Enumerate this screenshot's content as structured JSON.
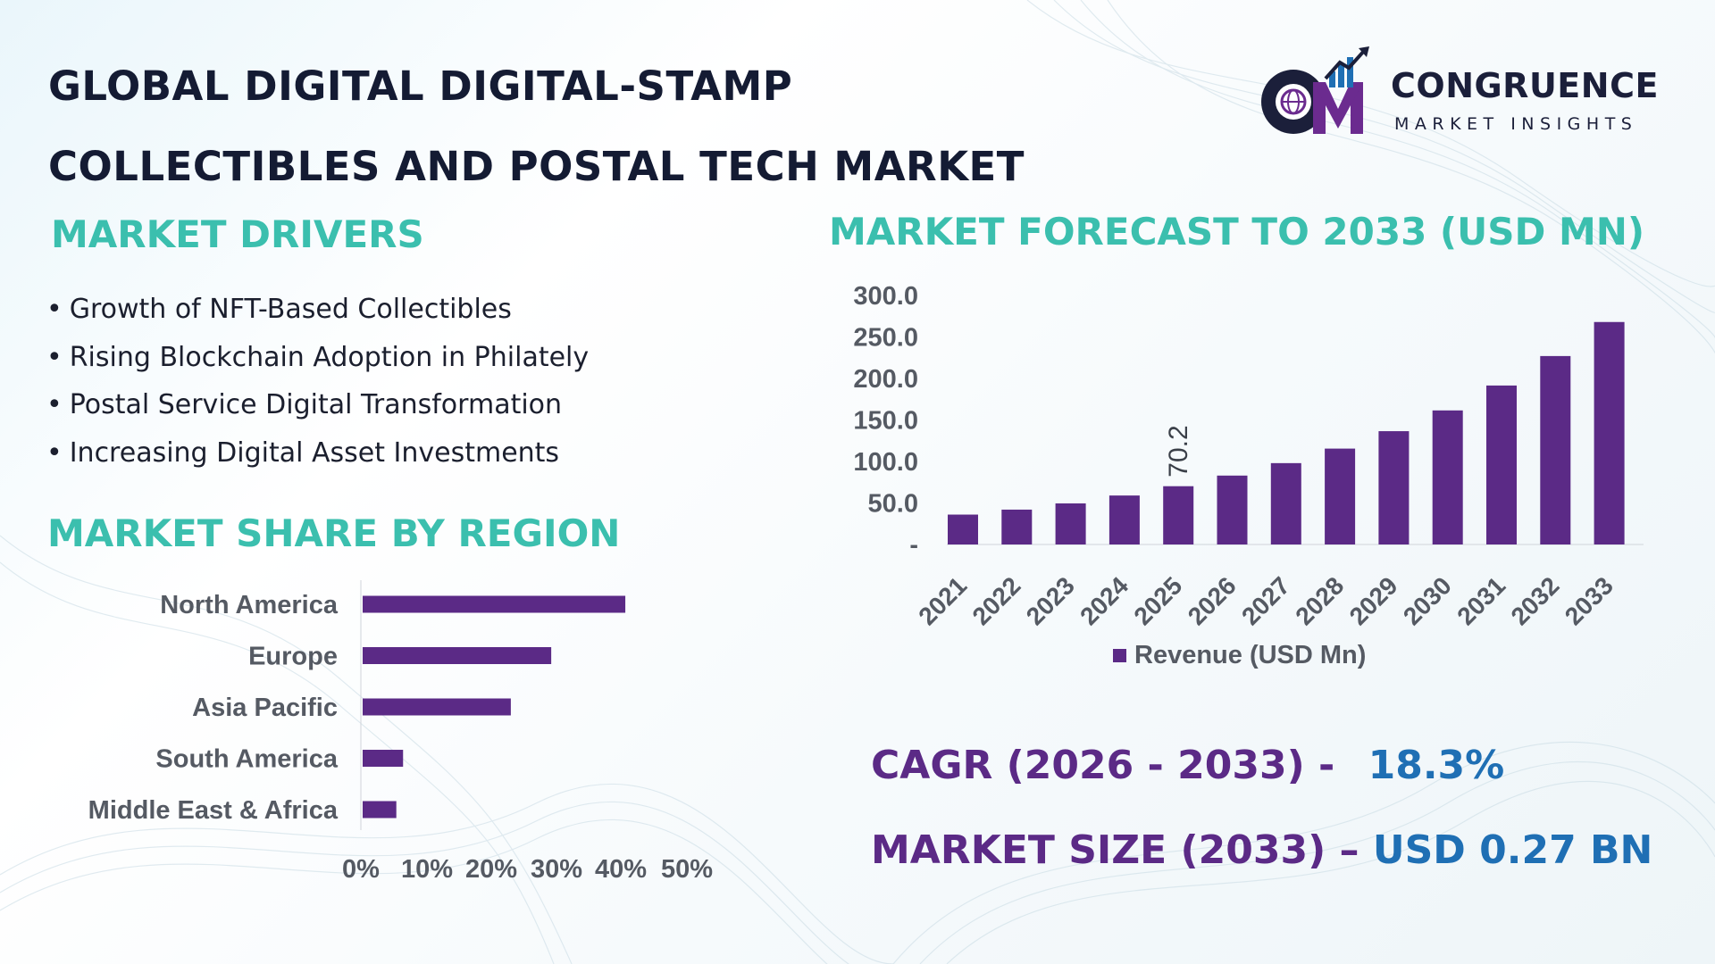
{
  "title_line1": "GLOBAL DIGITAL DIGITAL-STAMP",
  "title_line2": "COLLECTIBLES AND POSTAL TECH MARKET",
  "logo": {
    "name": "CONGRUENCE",
    "tagline": "MARKET INSIGHTS",
    "brand_colors": [
      "#1b1f3a",
      "#6b2b8f",
      "#1f6fb4"
    ]
  },
  "drivers": {
    "heading": "MARKET DRIVERS",
    "items": [
      "Growth of NFT-Based Collectibles",
      "Rising Blockchain Adoption in Philately",
      "Postal Service Digital Transformation",
      "Increasing Digital Asset Investments"
    ]
  },
  "region": {
    "heading": "MARKET SHARE BY REGION"
  },
  "forecast": {
    "heading": "MARKET FORECAST TO 2033 (USD MN)"
  },
  "stats": {
    "cagr_label": "CAGR (2026 - 2033) -",
    "cagr_value": "18.3%",
    "size_label": "MARKET SIZE (2033) –",
    "size_value": "USD 0.27 BN"
  },
  "colors": {
    "accent_teal": "#3bbfae",
    "bar_purple": "#5b2a86",
    "value_blue": "#1f6fb4",
    "title_navy": "#141b33"
  },
  "chart_data": [
    {
      "type": "bar",
      "orientation": "horizontal",
      "title": "MARKET SHARE BY REGION",
      "categories": [
        "North America",
        "Europe",
        "Asia Pacific",
        "South America",
        "Middle East & Africa"
      ],
      "values": [
        39,
        28,
        22,
        6,
        5
      ],
      "unit": "%",
      "xlim": [
        0,
        50
      ],
      "xticks": [
        "0%",
        "10%",
        "20%",
        "30%",
        "40%",
        "50%"
      ],
      "grid": false,
      "color": "#5b2a86"
    },
    {
      "type": "bar",
      "title": "MARKET FORECAST TO 2033 (USD MN)",
      "categories": [
        "2021",
        "2022",
        "2023",
        "2024",
        "2025",
        "2026",
        "2027",
        "2028",
        "2029",
        "2030",
        "2031",
        "2032",
        "2033"
      ],
      "series": [
        {
          "name": "Revenue (USD Mn)",
          "values": [
            36.0,
            42.0,
            49.5,
            59.0,
            70.2,
            83.0,
            98.0,
            115.5,
            136.5,
            161.5,
            191.5,
            227.0,
            268.0
          ]
        }
      ],
      "data_labels": {
        "2025": "70.2"
      },
      "yticks": [
        "-",
        "50.0",
        "100.0",
        "150.0",
        "200.0",
        "250.0",
        "300.0"
      ],
      "ylim": [
        0,
        300
      ],
      "legend": "bottom",
      "grid": false,
      "color": "#5b2a86"
    }
  ]
}
